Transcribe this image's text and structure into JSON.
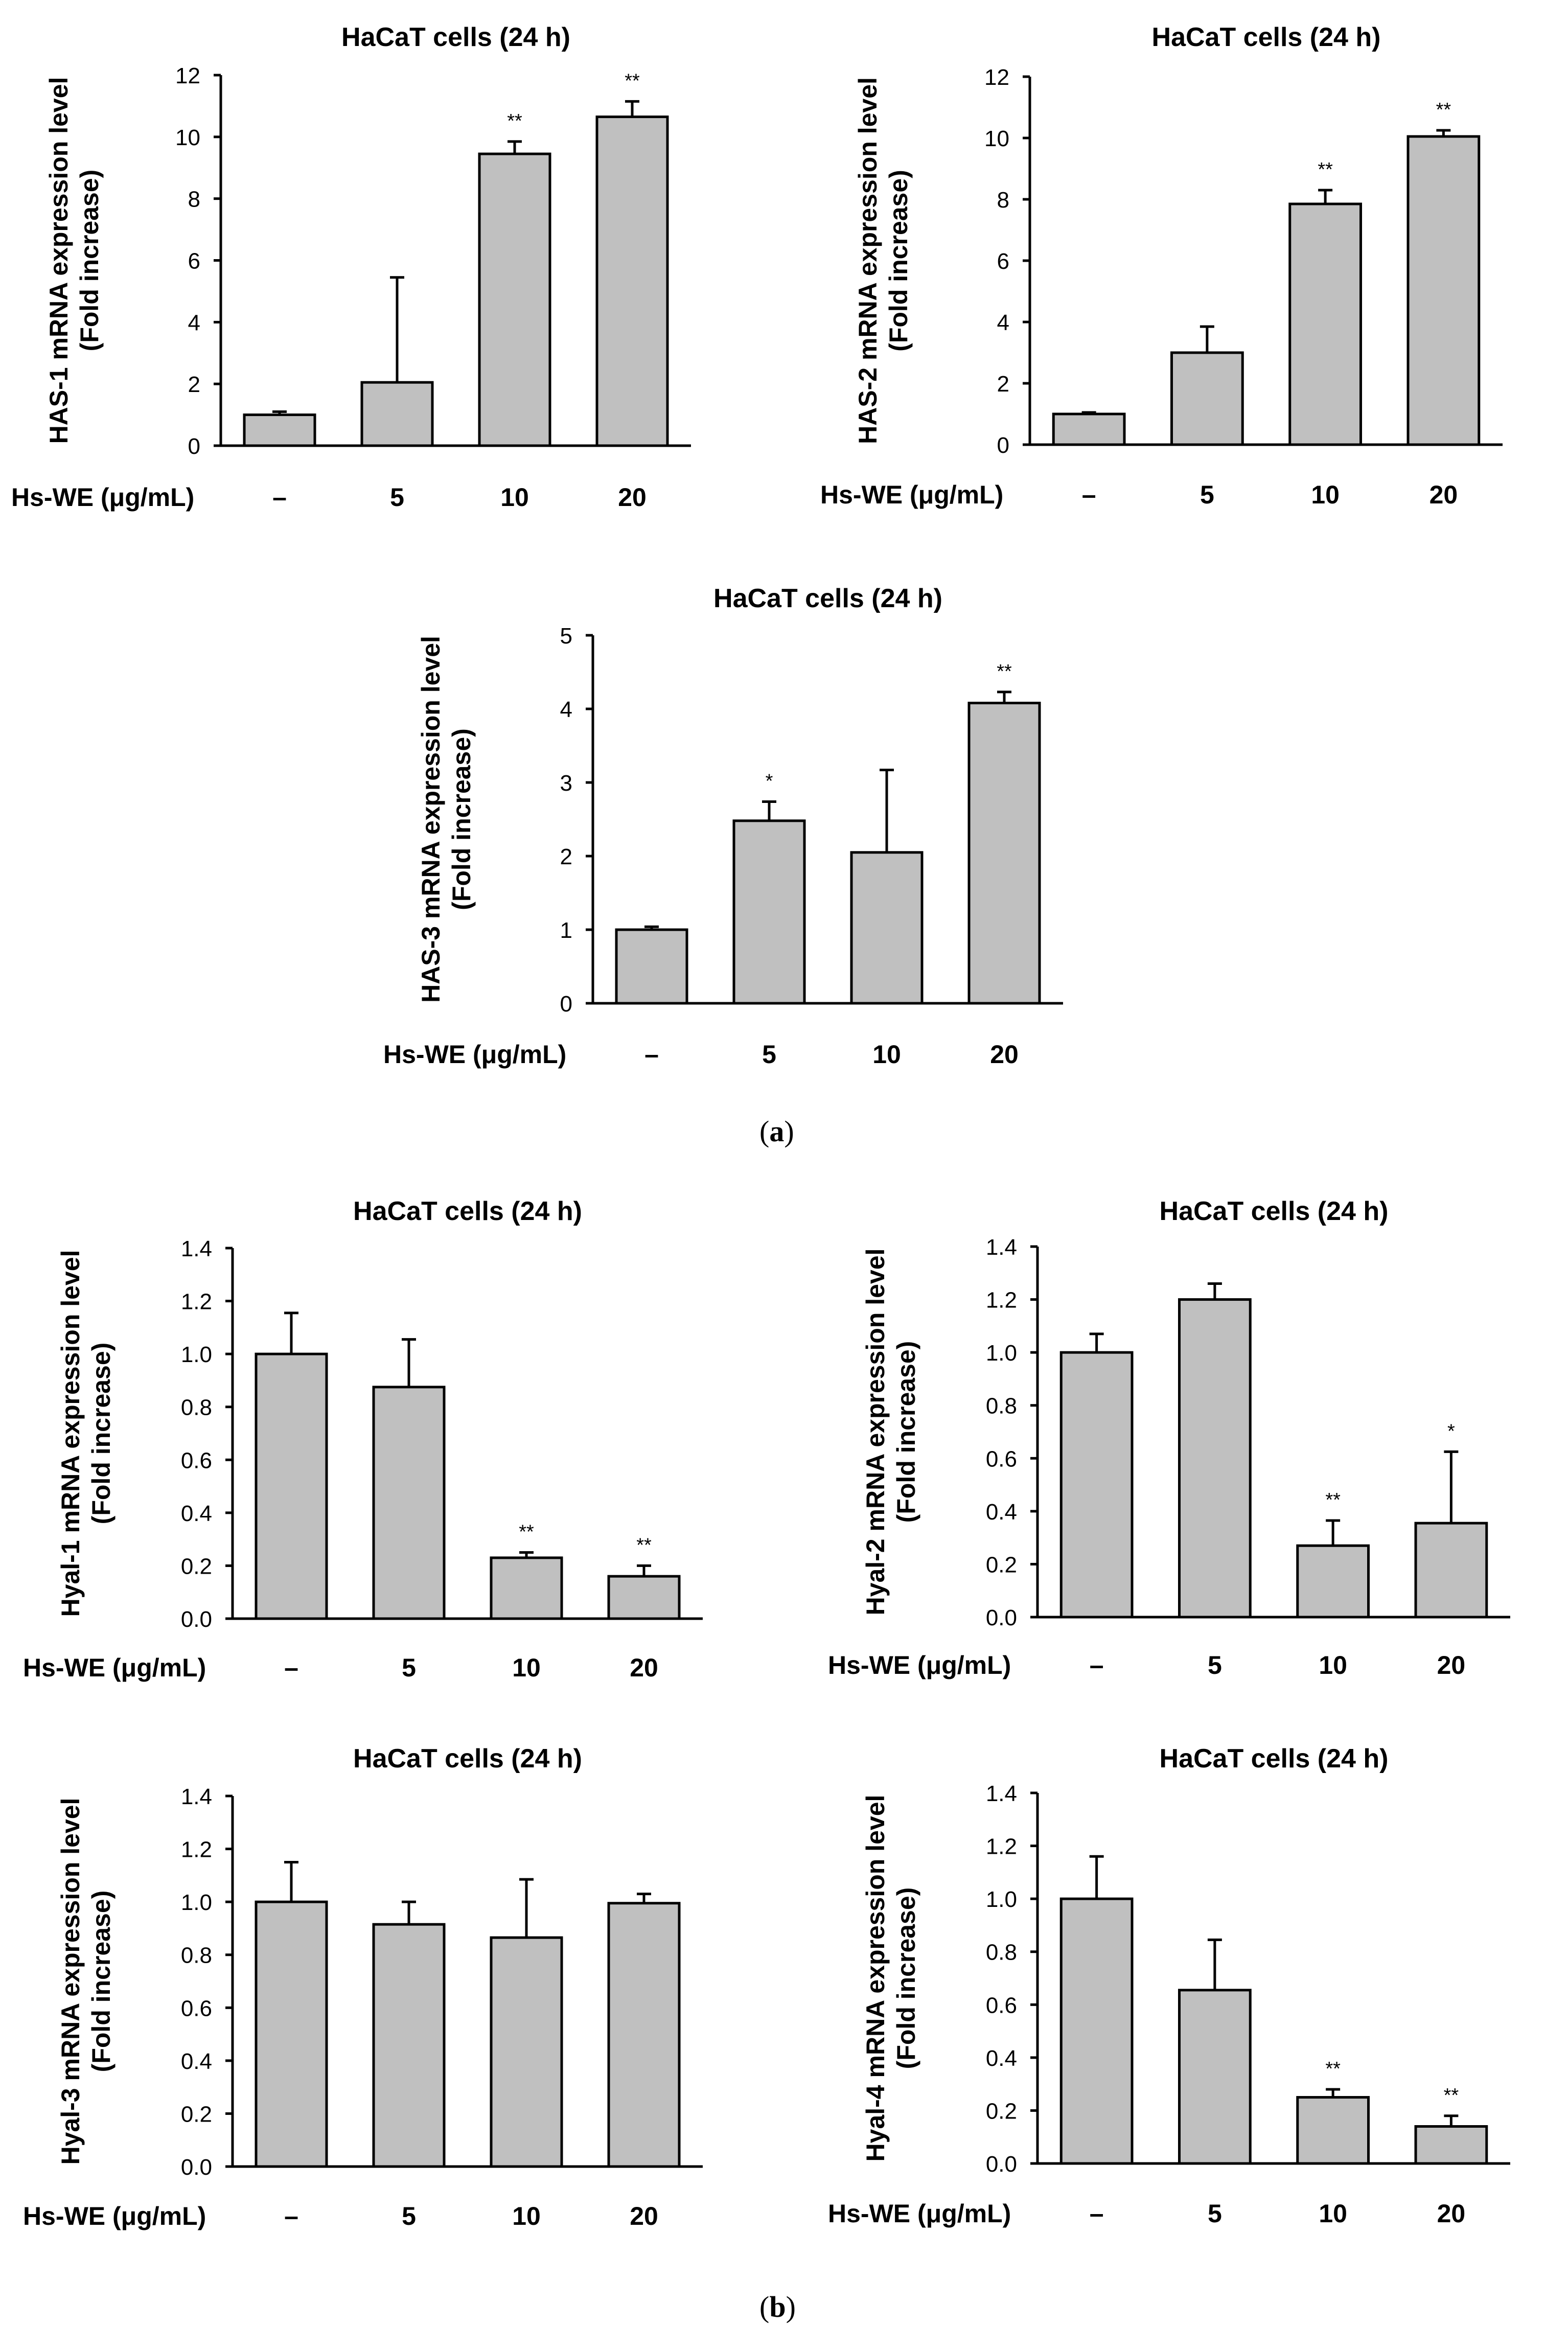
{
  "figure": {
    "panel_a_label": "a",
    "panel_b_label": "b",
    "bar_color": "#c0c0c0",
    "axis_color": "#000000"
  },
  "chart_data": [
    {
      "id": "has1",
      "type": "bar",
      "title": "HaCaT cells (24 h)",
      "ylabel": [
        "HAS-1 mRNA expression level",
        "(Fold increase)"
      ],
      "xlabel": "Hs-WE (μg/mL)",
      "categories": [
        "–",
        "5",
        "10",
        "20"
      ],
      "values": [
        1.0,
        2.05,
        9.45,
        10.65
      ],
      "errors": [
        0.1,
        3.4,
        0.4,
        0.5
      ],
      "significance": [
        "",
        "",
        "**",
        "**"
      ],
      "ylim": [
        0,
        12
      ],
      "yticks": [
        "0",
        "2",
        "4",
        "6",
        "8",
        "10",
        "12"
      ]
    },
    {
      "id": "has2",
      "type": "bar",
      "title": "HaCaT cells (24 h)",
      "ylabel": [
        "HAS-2 mRNA expression level",
        "(Fold increase)"
      ],
      "xlabel": "Hs-WE (μg/mL)",
      "categories": [
        "–",
        "5",
        "10",
        "20"
      ],
      "values": [
        1.0,
        3.0,
        7.85,
        10.05
      ],
      "errors": [
        0.05,
        0.85,
        0.45,
        0.2
      ],
      "significance": [
        "",
        "",
        "**",
        "**"
      ],
      "ylim": [
        0,
        12
      ],
      "yticks": [
        "0",
        "2",
        "4",
        "6",
        "8",
        "10",
        "12"
      ]
    },
    {
      "id": "has3",
      "type": "bar",
      "title": "HaCaT cells (24 h)",
      "ylabel": [
        "HAS-3 mRNA expression level",
        "(Fold increase)"
      ],
      "xlabel": "Hs-WE (μg/mL)",
      "categories": [
        "–",
        "5",
        "10",
        "20"
      ],
      "values": [
        1.0,
        2.48,
        2.05,
        4.08
      ],
      "errors": [
        0.04,
        0.26,
        1.12,
        0.15
      ],
      "significance": [
        "",
        "*",
        "",
        "**"
      ],
      "ylim": [
        0,
        5
      ],
      "yticks": [
        "0",
        "1",
        "2",
        "3",
        "4",
        "5"
      ]
    },
    {
      "id": "hyal1",
      "type": "bar",
      "title": "HaCaT cells (24 h)",
      "ylabel": [
        "Hyal-1 mRNA expression level",
        "(Fold increase)"
      ],
      "xlabel": "Hs-WE (μg/mL)",
      "categories": [
        "–",
        "5",
        "10",
        "20"
      ],
      "values": [
        1.0,
        0.875,
        0.23,
        0.16
      ],
      "errors": [
        0.155,
        0.18,
        0.02,
        0.04
      ],
      "significance": [
        "",
        "",
        "**",
        "**"
      ],
      "ylim": [
        0,
        1.4
      ],
      "yticks": [
        "0.0",
        "0.2",
        "0.4",
        "0.6",
        "0.8",
        "1.0",
        "1.2",
        "1.4"
      ]
    },
    {
      "id": "hyal2",
      "type": "bar",
      "title": "HaCaT cells (24 h)",
      "ylabel": [
        "Hyal-2 mRNA expression level",
        "(Fold increase)"
      ],
      "xlabel": "Hs-WE (μg/mL)",
      "categories": [
        "–",
        "5",
        "10",
        "20"
      ],
      "values": [
        1.0,
        1.2,
        0.27,
        0.355
      ],
      "errors": [
        0.07,
        0.06,
        0.095,
        0.27
      ],
      "significance": [
        "",
        "",
        "**",
        "*"
      ],
      "ylim": [
        0,
        1.4
      ],
      "yticks": [
        "0.0",
        "0.2",
        "0.4",
        "0.6",
        "0.8",
        "1.0",
        "1.2",
        "1.4"
      ]
    },
    {
      "id": "hyal3",
      "type": "bar",
      "title": "HaCaT cells (24 h)",
      "ylabel": [
        "Hyal-3 mRNA expression level",
        "(Fold increase)"
      ],
      "xlabel": "Hs-WE (μg/mL)",
      "categories": [
        "–",
        "5",
        "10",
        "20"
      ],
      "values": [
        1.0,
        0.915,
        0.865,
        0.995
      ],
      "errors": [
        0.15,
        0.085,
        0.22,
        0.035
      ],
      "significance": [
        "",
        "",
        "",
        ""
      ],
      "ylim": [
        0,
        1.4
      ],
      "yticks": [
        "0.0",
        "0.2",
        "0.4",
        "0.6",
        "0.8",
        "1.0",
        "1.2",
        "1.4"
      ]
    },
    {
      "id": "hyal4",
      "type": "bar",
      "title": "HaCaT cells (24 h)",
      "ylabel": [
        "Hyal-4 mRNA expression level",
        "(Fold increase)"
      ],
      "xlabel": "Hs-WE (μg/mL)",
      "categories": [
        "–",
        "5",
        "10",
        "20"
      ],
      "values": [
        1.0,
        0.655,
        0.25,
        0.14
      ],
      "errors": [
        0.16,
        0.19,
        0.03,
        0.04
      ],
      "significance": [
        "",
        "",
        "**",
        "**"
      ],
      "ylim": [
        0,
        1.4
      ],
      "yticks": [
        "0.0",
        "0.2",
        "0.4",
        "0.6",
        "0.8",
        "1.0",
        "1.2",
        "1.4"
      ]
    }
  ]
}
